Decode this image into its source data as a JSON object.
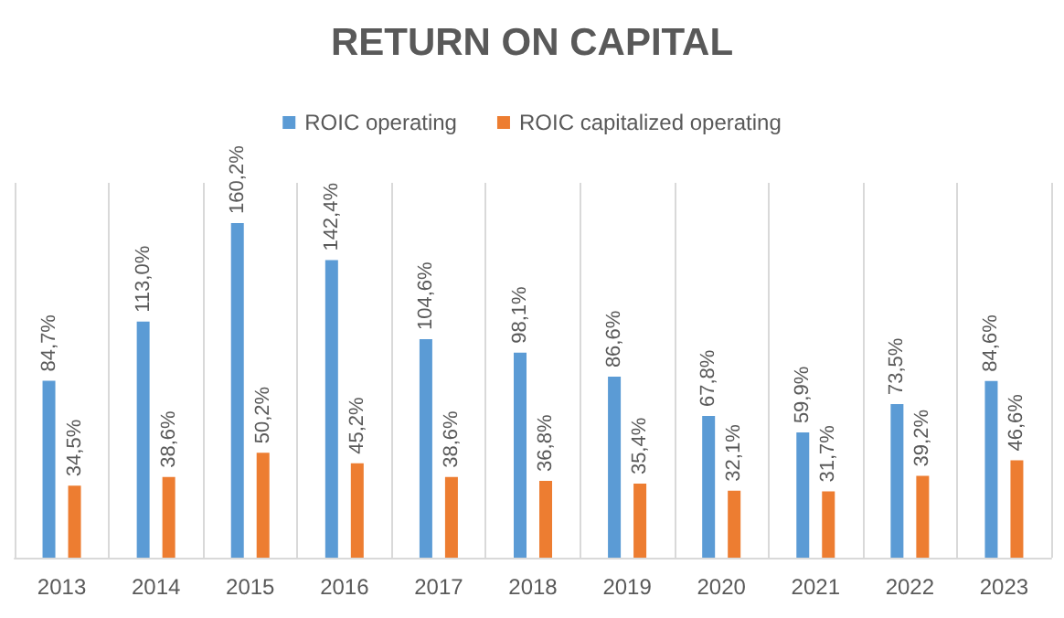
{
  "chart_data": {
    "type": "bar",
    "title": "RETURN ON CAPITAL",
    "categories": [
      "2013",
      "2014",
      "2015",
      "2016",
      "2017",
      "2018",
      "2019",
      "2020",
      "2021",
      "2022",
      "2023"
    ],
    "series": [
      {
        "name": "ROIC operating",
        "color": "#5b9bd5",
        "values": [
          84.7,
          113.0,
          160.2,
          142.4,
          104.6,
          98.1,
          86.6,
          67.8,
          59.9,
          73.5,
          84.6
        ],
        "value_labels": [
          "84,7%",
          "113,0%",
          "160,2%",
          "142,4%",
          "104,6%",
          "98,1%",
          "86,6%",
          "67,8%",
          "59,9%",
          "73,5%",
          "84,6%"
        ]
      },
      {
        "name": "ROIC capitalized operating",
        "color": "#ed7d31",
        "values": [
          34.5,
          38.6,
          50.2,
          45.2,
          38.6,
          36.8,
          35.4,
          32.1,
          31.7,
          39.2,
          46.6
        ],
        "value_labels": [
          "34,5%",
          "38,6%",
          "50,2%",
          "45,2%",
          "38,6%",
          "36,8%",
          "35,4%",
          "32,1%",
          "31,7%",
          "39,2%",
          "46,6%"
        ]
      }
    ],
    "legend": "top",
    "grid": "x"
  }
}
